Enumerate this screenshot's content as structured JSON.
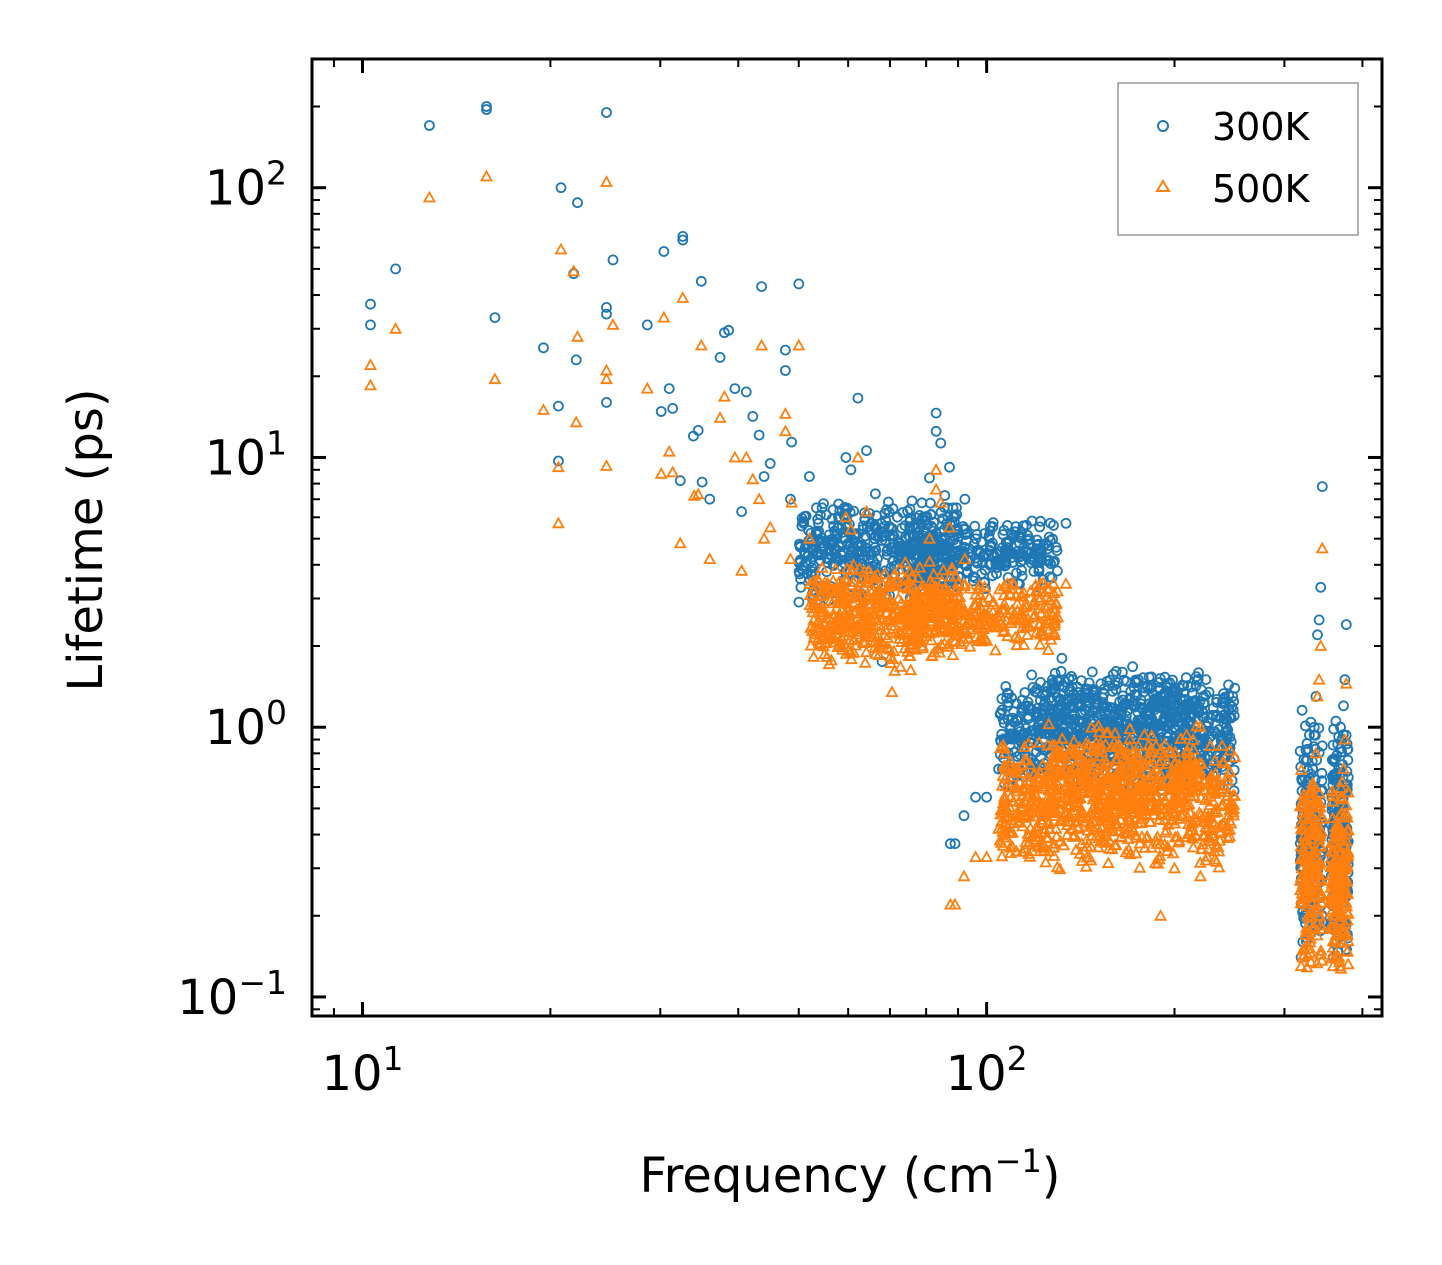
{
  "chart_data": {
    "type": "scatter",
    "title": "",
    "xlabel": "Frequency (cm",
    "xlabel_sup": "−1",
    "xlabel_end": ")",
    "ylabel": "Lifetime (ps)",
    "xscale": "log",
    "yscale": "log",
    "xlim": [
      8.3,
      430
    ],
    "ylim": [
      0.085,
      300
    ],
    "x_ticks": [
      {
        "value": 10,
        "base": "10",
        "exp": "1"
      },
      {
        "value": 100,
        "base": "10",
        "exp": "2"
      }
    ],
    "y_ticks": [
      {
        "value": 0.1,
        "base": "10",
        "exp": "−1"
      },
      {
        "value": 1,
        "base": "10",
        "exp": "0"
      },
      {
        "value": 10,
        "base": "10",
        "exp": "1"
      },
      {
        "value": 100,
        "base": "10",
        "exp": "2"
      }
    ],
    "legend_position": "top-right",
    "colors": {
      "300K": "#1f77b4",
      "500K": "#ff7f0e"
    },
    "series": [
      {
        "name": "300K",
        "marker": "circle",
        "points": [
          [
            10.3,
            37
          ],
          [
            10.3,
            31
          ],
          [
            11.3,
            50
          ],
          [
            12.8,
            170
          ],
          [
            15.8,
            200
          ],
          [
            15.8,
            195
          ],
          [
            16.3,
            33
          ],
          [
            19.5,
            25.5
          ],
          [
            20.6,
            15.5
          ],
          [
            20.6,
            9.7
          ],
          [
            20.8,
            100
          ],
          [
            21.8,
            48
          ],
          [
            22,
            23
          ],
          [
            22.1,
            88
          ],
          [
            24.6,
            190
          ],
          [
            24.6,
            36
          ],
          [
            24.6,
            34
          ],
          [
            24.6,
            16
          ],
          [
            25.2,
            54
          ],
          [
            28.6,
            31
          ],
          [
            30.1,
            14.8
          ],
          [
            30.4,
            58
          ],
          [
            31,
            18
          ],
          [
            31.4,
            15.2
          ],
          [
            32.3,
            8.2
          ],
          [
            32.6,
            64
          ],
          [
            32.6,
            66
          ],
          [
            33.9,
            12
          ],
          [
            34.5,
            12.6
          ],
          [
            34.9,
            45
          ],
          [
            35,
            8.1
          ],
          [
            36,
            7
          ],
          [
            37.4,
            23.5
          ],
          [
            38,
            29
          ],
          [
            38.6,
            29.6
          ],
          [
            39.5,
            18
          ],
          [
            40.5,
            6.3
          ],
          [
            41.2,
            17.5
          ],
          [
            42.2,
            14.2
          ],
          [
            43.2,
            12.1
          ],
          [
            43.6,
            43
          ],
          [
            44,
            8.5
          ],
          [
            45,
            9.5
          ],
          [
            47.6,
            25
          ],
          [
            47.6,
            21
          ],
          [
            48.7,
            11.4
          ],
          [
            48.5,
            7
          ],
          [
            50,
            44
          ],
          [
            52,
            8.5
          ],
          [
            54.5,
            6.5
          ],
          [
            59.5,
            10
          ],
          [
            60.6,
            9
          ],
          [
            62.2,
            16.6
          ],
          [
            64.2,
            10.6
          ],
          [
            68.7,
            6.2
          ],
          [
            75.3,
            5.5
          ],
          [
            81,
            8.4
          ],
          [
            83,
            14.6
          ],
          [
            83,
            12.5
          ],
          [
            84.4,
            11.3
          ],
          [
            87.2,
            9.2
          ],
          [
            92.3,
            7
          ],
          [
            99,
            4.3
          ],
          [
            108,
            5.6
          ],
          [
            113.5,
            4.3
          ],
          [
            122,
            5.8
          ],
          [
            128,
            5.6
          ],
          [
            134,
            5.7
          ],
          [
            68,
            1.75
          ],
          [
            87.5,
            0.37
          ],
          [
            89,
            0.37
          ],
          [
            92,
            0.47
          ],
          [
            96,
            0.55
          ],
          [
            100,
            0.55
          ],
          [
            104.5,
            0.7
          ],
          [
            110,
            0.6
          ],
          [
            114,
            0.88
          ],
          [
            120,
            0.96
          ],
          [
            132,
            1.8
          ],
          [
            140,
            1.2
          ],
          [
            150,
            1.1
          ],
          [
            165,
            1.6
          ],
          [
            175,
            1.5
          ],
          [
            190,
            1.3
          ],
          [
            200,
            1.0
          ],
          [
            220,
            0.9
          ],
          [
            245,
            0.82
          ],
          [
            345,
            7.8
          ],
          [
            343,
            3.3
          ],
          [
            341,
            2.5
          ],
          [
            339,
            2.2
          ],
          [
            337,
            1.3
          ],
          [
            335,
            1.0
          ],
          [
            333,
            0.7
          ],
          [
            331,
            0.5
          ],
          [
            329,
            0.4
          ],
          [
            327,
            0.3
          ],
          [
            325,
            0.25
          ],
          [
            323,
            0.2
          ],
          [
            321,
            0.16
          ],
          [
            319,
            0.14
          ],
          [
            377,
            2.4
          ],
          [
            375,
            1.5
          ],
          [
            373,
            1.2
          ],
          [
            371,
            0.9
          ],
          [
            369,
            0.7
          ],
          [
            367,
            0.5
          ],
          [
            365,
            0.35
          ],
          [
            363,
            0.25
          ],
          [
            361,
            0.18
          ],
          [
            359,
            0.14
          ]
        ],
        "clusters": [
          {
            "x": [
              50,
              90
            ],
            "y": [
              2.8,
              7.5
            ],
            "n": 480
          },
          {
            "x": [
              75,
              130
            ],
            "y": [
              3.2,
              6.0
            ],
            "n": 260
          },
          {
            "x": [
              105,
              250
            ],
            "y": [
              0.55,
              1.6
            ],
            "n": 760
          },
          {
            "x": [
              125,
              220
            ],
            "y": [
              0.8,
              1.75
            ],
            "n": 220
          },
          {
            "x": [
              318,
              345
            ],
            "y": [
              0.13,
              1.3
            ],
            "n": 180
          },
          {
            "x": [
              356,
              380
            ],
            "y": [
              0.13,
              1.1
            ],
            "n": 180
          }
        ]
      },
      {
        "name": "500K",
        "marker": "triangle",
        "points": [
          [
            10.3,
            22
          ],
          [
            10.3,
            18.5
          ],
          [
            11.3,
            30
          ],
          [
            12.8,
            92
          ],
          [
            15.8,
            110
          ],
          [
            16.3,
            19.5
          ],
          [
            19.5,
            15
          ],
          [
            20.6,
            9.2
          ],
          [
            20.6,
            5.7
          ],
          [
            20.8,
            59
          ],
          [
            21.8,
            49
          ],
          [
            22,
            13.5
          ],
          [
            22.1,
            28
          ],
          [
            24.6,
            105
          ],
          [
            24.6,
            21
          ],
          [
            24.6,
            19.5
          ],
          [
            24.6,
            9.3
          ],
          [
            25.2,
            31
          ],
          [
            28.6,
            18
          ],
          [
            30.1,
            8.7
          ],
          [
            30.4,
            33
          ],
          [
            31,
            10.5
          ],
          [
            31.4,
            8.8
          ],
          [
            32.3,
            4.8
          ],
          [
            32.6,
            39
          ],
          [
            34,
            7.2
          ],
          [
            34.5,
            7.3
          ],
          [
            34.9,
            26
          ],
          [
            36,
            4.2
          ],
          [
            37.4,
            14
          ],
          [
            38,
            16.8
          ],
          [
            39.5,
            10
          ],
          [
            40.5,
            3.8
          ],
          [
            41.2,
            10
          ],
          [
            42.2,
            8.3
          ],
          [
            43.2,
            7
          ],
          [
            43.6,
            26
          ],
          [
            44,
            5
          ],
          [
            45,
            5.5
          ],
          [
            47.6,
            14.5
          ],
          [
            47.6,
            12.5
          ],
          [
            48.7,
            6.8
          ],
          [
            48.5,
            4.2
          ],
          [
            50,
            26
          ],
          [
            52,
            5
          ],
          [
            54.5,
            3.9
          ],
          [
            59.5,
            6
          ],
          [
            60.6,
            5.4
          ],
          [
            62.2,
            10
          ],
          [
            64.2,
            6.3
          ],
          [
            68.7,
            3.7
          ],
          [
            70.5,
            1.35
          ],
          [
            75.3,
            3.3
          ],
          [
            81,
            5
          ],
          [
            83,
            9
          ],
          [
            83,
            7.6
          ],
          [
            84.4,
            6.8
          ],
          [
            87.2,
            5.5
          ],
          [
            92.3,
            4.2
          ],
          [
            99,
            2.6
          ],
          [
            108,
            3.4
          ],
          [
            113.5,
            2.6
          ],
          [
            122,
            3.4
          ],
          [
            128,
            3.4
          ],
          [
            134,
            3.4
          ],
          [
            87.5,
            0.22
          ],
          [
            89,
            0.22
          ],
          [
            92,
            0.28
          ],
          [
            96,
            0.33
          ],
          [
            100,
            0.33
          ],
          [
            104.5,
            0.42
          ],
          [
            110,
            0.36
          ],
          [
            114,
            0.5
          ],
          [
            120,
            0.56
          ],
          [
            140,
            0.75
          ],
          [
            150,
            0.6
          ],
          [
            165,
            0.8
          ],
          [
            175,
            0.85
          ],
          [
            190,
            0.2
          ],
          [
            200,
            0.3
          ],
          [
            220,
            0.28
          ],
          [
            245,
            0.45
          ],
          [
            345,
            4.6
          ],
          [
            343,
            2.0
          ],
          [
            341,
            1.5
          ],
          [
            339,
            1.3
          ],
          [
            337,
            0.8
          ],
          [
            335,
            0.6
          ],
          [
            333,
            0.42
          ],
          [
            331,
            0.3
          ],
          [
            329,
            0.25
          ],
          [
            327,
            0.2
          ],
          [
            325,
            0.17
          ],
          [
            323,
            0.15
          ],
          [
            321,
            0.14
          ],
          [
            319,
            0.13
          ],
          [
            377,
            1.45
          ],
          [
            375,
            0.9
          ],
          [
            373,
            0.7
          ],
          [
            371,
            0.55
          ],
          [
            369,
            0.42
          ],
          [
            367,
            0.3
          ],
          [
            365,
            0.22
          ],
          [
            363,
            0.17
          ],
          [
            361,
            0.14
          ],
          [
            359,
            0.13
          ]
        ],
        "clusters": [
          {
            "x": [
              52,
              90
            ],
            "y": [
              1.6,
              4.2
            ],
            "n": 480
          },
          {
            "x": [
              75,
              130
            ],
            "y": [
              1.9,
              3.6
            ],
            "n": 260
          },
          {
            "x": [
              105,
              250
            ],
            "y": [
              0.28,
              0.95
            ],
            "n": 760
          },
          {
            "x": [
              125,
              220
            ],
            "y": [
              0.4,
              1.1
            ],
            "n": 220
          },
          {
            "x": [
              318,
              345
            ],
            "y": [
              0.12,
              0.8
            ],
            "n": 180
          },
          {
            "x": [
              356,
              380
            ],
            "y": [
              0.12,
              0.65
            ],
            "n": 180
          }
        ]
      }
    ]
  }
}
